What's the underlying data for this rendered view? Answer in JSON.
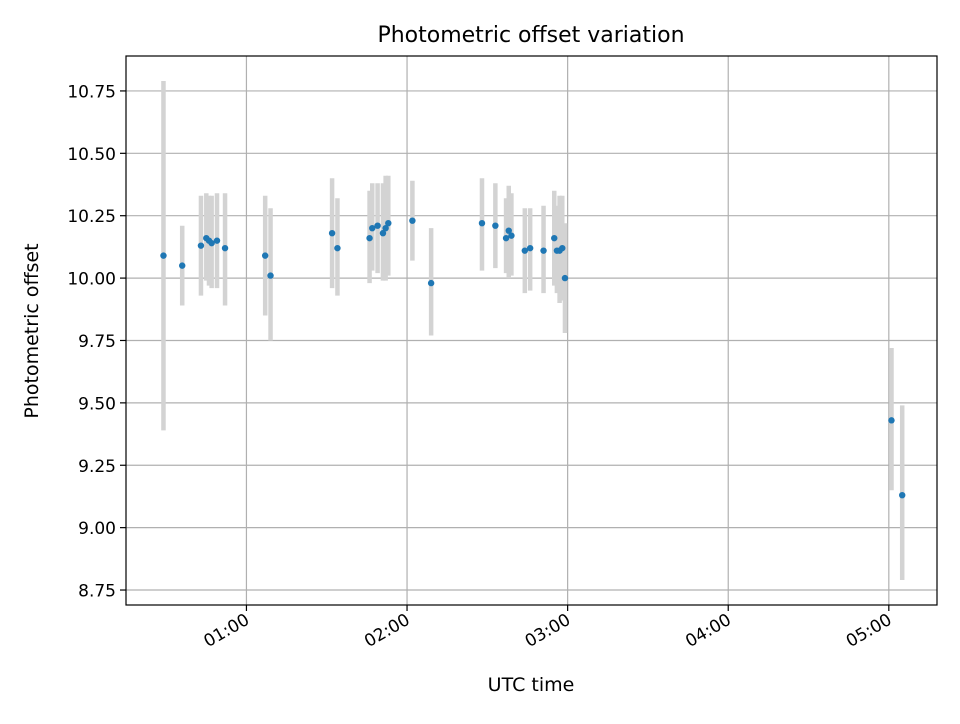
{
  "chart_data": {
    "type": "scatter",
    "title": "Photometric offset variation",
    "xlabel": "UTC time",
    "ylabel": "Photometric offset",
    "x_range": [
      "00:15",
      "05:18"
    ],
    "ylim": [
      8.69,
      10.89
    ],
    "x_ticks": [
      "01:00",
      "02:00",
      "03:00",
      "04:00",
      "05:00"
    ],
    "y_ticks": [
      "8.75",
      "9.00",
      "9.25",
      "9.50",
      "9.75",
      "10.00",
      "10.25",
      "10.50",
      "10.75"
    ],
    "grid": true,
    "point_color": "#1f77b4",
    "errorbar_color": "#d3d3d3",
    "points": [
      {
        "x": "00:29",
        "y": 10.09,
        "lo": 9.39,
        "hi": 10.79
      },
      {
        "x": "00:36",
        "y": 10.05,
        "lo": 9.89,
        "hi": 10.21
      },
      {
        "x": "00:43",
        "y": 10.13,
        "lo": 9.93,
        "hi": 10.33
      },
      {
        "x": "00:45",
        "y": 10.16,
        "lo": 9.99,
        "hi": 10.34
      },
      {
        "x": "00:46",
        "y": 10.15,
        "lo": 9.97,
        "hi": 10.33
      },
      {
        "x": "00:47",
        "y": 10.14,
        "lo": 9.96,
        "hi": 10.33
      },
      {
        "x": "00:49",
        "y": 10.15,
        "lo": 9.96,
        "hi": 10.34
      },
      {
        "x": "00:52",
        "y": 10.12,
        "lo": 9.89,
        "hi": 10.34
      },
      {
        "x": "01:07",
        "y": 10.09,
        "lo": 9.85,
        "hi": 10.33
      },
      {
        "x": "01:09",
        "y": 10.01,
        "lo": 9.75,
        "hi": 10.28
      },
      {
        "x": "01:32",
        "y": 10.18,
        "lo": 9.96,
        "hi": 10.4
      },
      {
        "x": "01:34",
        "y": 10.12,
        "lo": 9.93,
        "hi": 10.32
      },
      {
        "x": "01:46",
        "y": 10.16,
        "lo": 9.98,
        "hi": 10.35
      },
      {
        "x": "01:47",
        "y": 10.2,
        "lo": 10.03,
        "hi": 10.38
      },
      {
        "x": "01:49",
        "y": 10.21,
        "lo": 10.02,
        "hi": 10.38
      },
      {
        "x": "01:51",
        "y": 10.18,
        "lo": 9.99,
        "hi": 10.38
      },
      {
        "x": "01:52",
        "y": 10.2,
        "lo": 9.99,
        "hi": 10.41
      },
      {
        "x": "01:53",
        "y": 10.22,
        "lo": 10.01,
        "hi": 10.41
      },
      {
        "x": "02:02",
        "y": 10.23,
        "lo": 10.07,
        "hi": 10.39
      },
      {
        "x": "02:09",
        "y": 9.98,
        "lo": 9.77,
        "hi": 10.2
      },
      {
        "x": "02:28",
        "y": 10.22,
        "lo": 10.03,
        "hi": 10.4
      },
      {
        "x": "02:33",
        "y": 10.21,
        "lo": 10.04,
        "hi": 10.38
      },
      {
        "x": "02:37",
        "y": 10.16,
        "lo": 10.02,
        "hi": 10.32
      },
      {
        "x": "02:38",
        "y": 10.19,
        "lo": 10.0,
        "hi": 10.37
      },
      {
        "x": "02:39",
        "y": 10.17,
        "lo": 10.01,
        "hi": 10.34
      },
      {
        "x": "02:44",
        "y": 10.11,
        "lo": 9.94,
        "hi": 10.28
      },
      {
        "x": "02:46",
        "y": 10.12,
        "lo": 9.95,
        "hi": 10.28
      },
      {
        "x": "02:51",
        "y": 10.11,
        "lo": 9.94,
        "hi": 10.29
      },
      {
        "x": "02:55",
        "y": 10.16,
        "lo": 9.97,
        "hi": 10.35
      },
      {
        "x": "02:56",
        "y": 10.11,
        "lo": 9.94,
        "hi": 10.29
      },
      {
        "x": "02:57",
        "y": 10.11,
        "lo": 9.9,
        "hi": 10.33
      },
      {
        "x": "02:58",
        "y": 10.12,
        "lo": 9.91,
        "hi": 10.33
      },
      {
        "x": "02:59",
        "y": 10.0,
        "lo": 9.78,
        "hi": 10.22
      },
      {
        "x": "05:01",
        "y": 9.43,
        "lo": 9.15,
        "hi": 9.72
      },
      {
        "x": "05:05",
        "y": 9.13,
        "lo": 8.79,
        "hi": 9.49
      }
    ]
  }
}
